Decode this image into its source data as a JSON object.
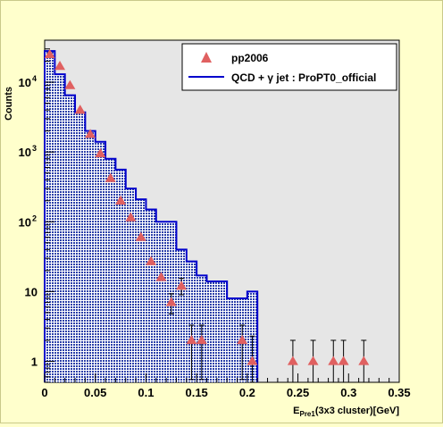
{
  "chart_data": {
    "type": "histogram-with-points",
    "xlabel_main": "E",
    "xlabel_sub": "Pre1",
    "xlabel_tail": "(3x3 cluster)[GeV]",
    "ylabel": "Counts",
    "xlim": [
      0,
      0.35
    ],
    "ylim": [
      0.5,
      40000
    ],
    "yscale": "log",
    "x_ticks": [
      "0",
      "0.05",
      "0.1",
      "0.15",
      "0.2",
      "0.25",
      "0.3",
      "0.35"
    ],
    "y_ticks": [
      {
        "base": "1",
        "exp": ""
      },
      {
        "base": "10",
        "exp": ""
      },
      {
        "base": "10",
        "exp": "2"
      },
      {
        "base": "10",
        "exp": "3"
      },
      {
        "base": "10",
        "exp": "4"
      }
    ],
    "legend": {
      "position": "top-right",
      "entries": [
        {
          "label": "pp2006",
          "marker": "triangle",
          "color": "#e06060"
        },
        {
          "label": "QCD + γ jet : ProPT0_official",
          "marker": "line",
          "color": "#0000cc"
        }
      ]
    },
    "histogram": {
      "name": "QCD + γ jet : ProPT0_official",
      "color": "#0000cc",
      "fill": "#6a7fd6",
      "bin_edges": [
        0,
        0.01,
        0.02,
        0.03,
        0.04,
        0.05,
        0.06,
        0.07,
        0.08,
        0.09,
        0.1,
        0.11,
        0.12,
        0.13,
        0.14,
        0.15,
        0.16,
        0.17,
        0.18,
        0.19,
        0.2,
        0.21
      ],
      "values": [
        28000,
        13000,
        6500,
        3700,
        2000,
        1400,
        800,
        560,
        300,
        210,
        150,
        100,
        100,
        40,
        27,
        17,
        14,
        14,
        8,
        8,
        10
      ]
    },
    "points": {
      "name": "pp2006",
      "color": "#e06060",
      "x": [
        0.005,
        0.015,
        0.025,
        0.035,
        0.045,
        0.055,
        0.065,
        0.075,
        0.085,
        0.095,
        0.105,
        0.115,
        0.125,
        0.135,
        0.145,
        0.155,
        0.195,
        0.205,
        0.245,
        0.265,
        0.285,
        0.295,
        0.315
      ],
      "y": [
        25000,
        17000,
        9000,
        4000,
        1800,
        950,
        420,
        200,
        115,
        60,
        27,
        16,
        7,
        12,
        2,
        2,
        2,
        1,
        1,
        1,
        1,
        1,
        1
      ],
      "err_low": [
        0,
        0,
        0,
        0,
        0,
        0,
        0,
        0,
        0,
        0,
        0,
        0,
        2.2,
        3,
        1.45,
        1.45,
        1.45,
        0.62,
        0.62,
        0.62,
        0.62,
        0.62,
        0.62
      ],
      "err_high": [
        0,
        0,
        0,
        0,
        0,
        0,
        0,
        0,
        0,
        0,
        0,
        0,
        2.3,
        3.5,
        1.3,
        1.3,
        1.3,
        1.3,
        1.0,
        1.0,
        1.0,
        1.0,
        1.0
      ]
    }
  }
}
